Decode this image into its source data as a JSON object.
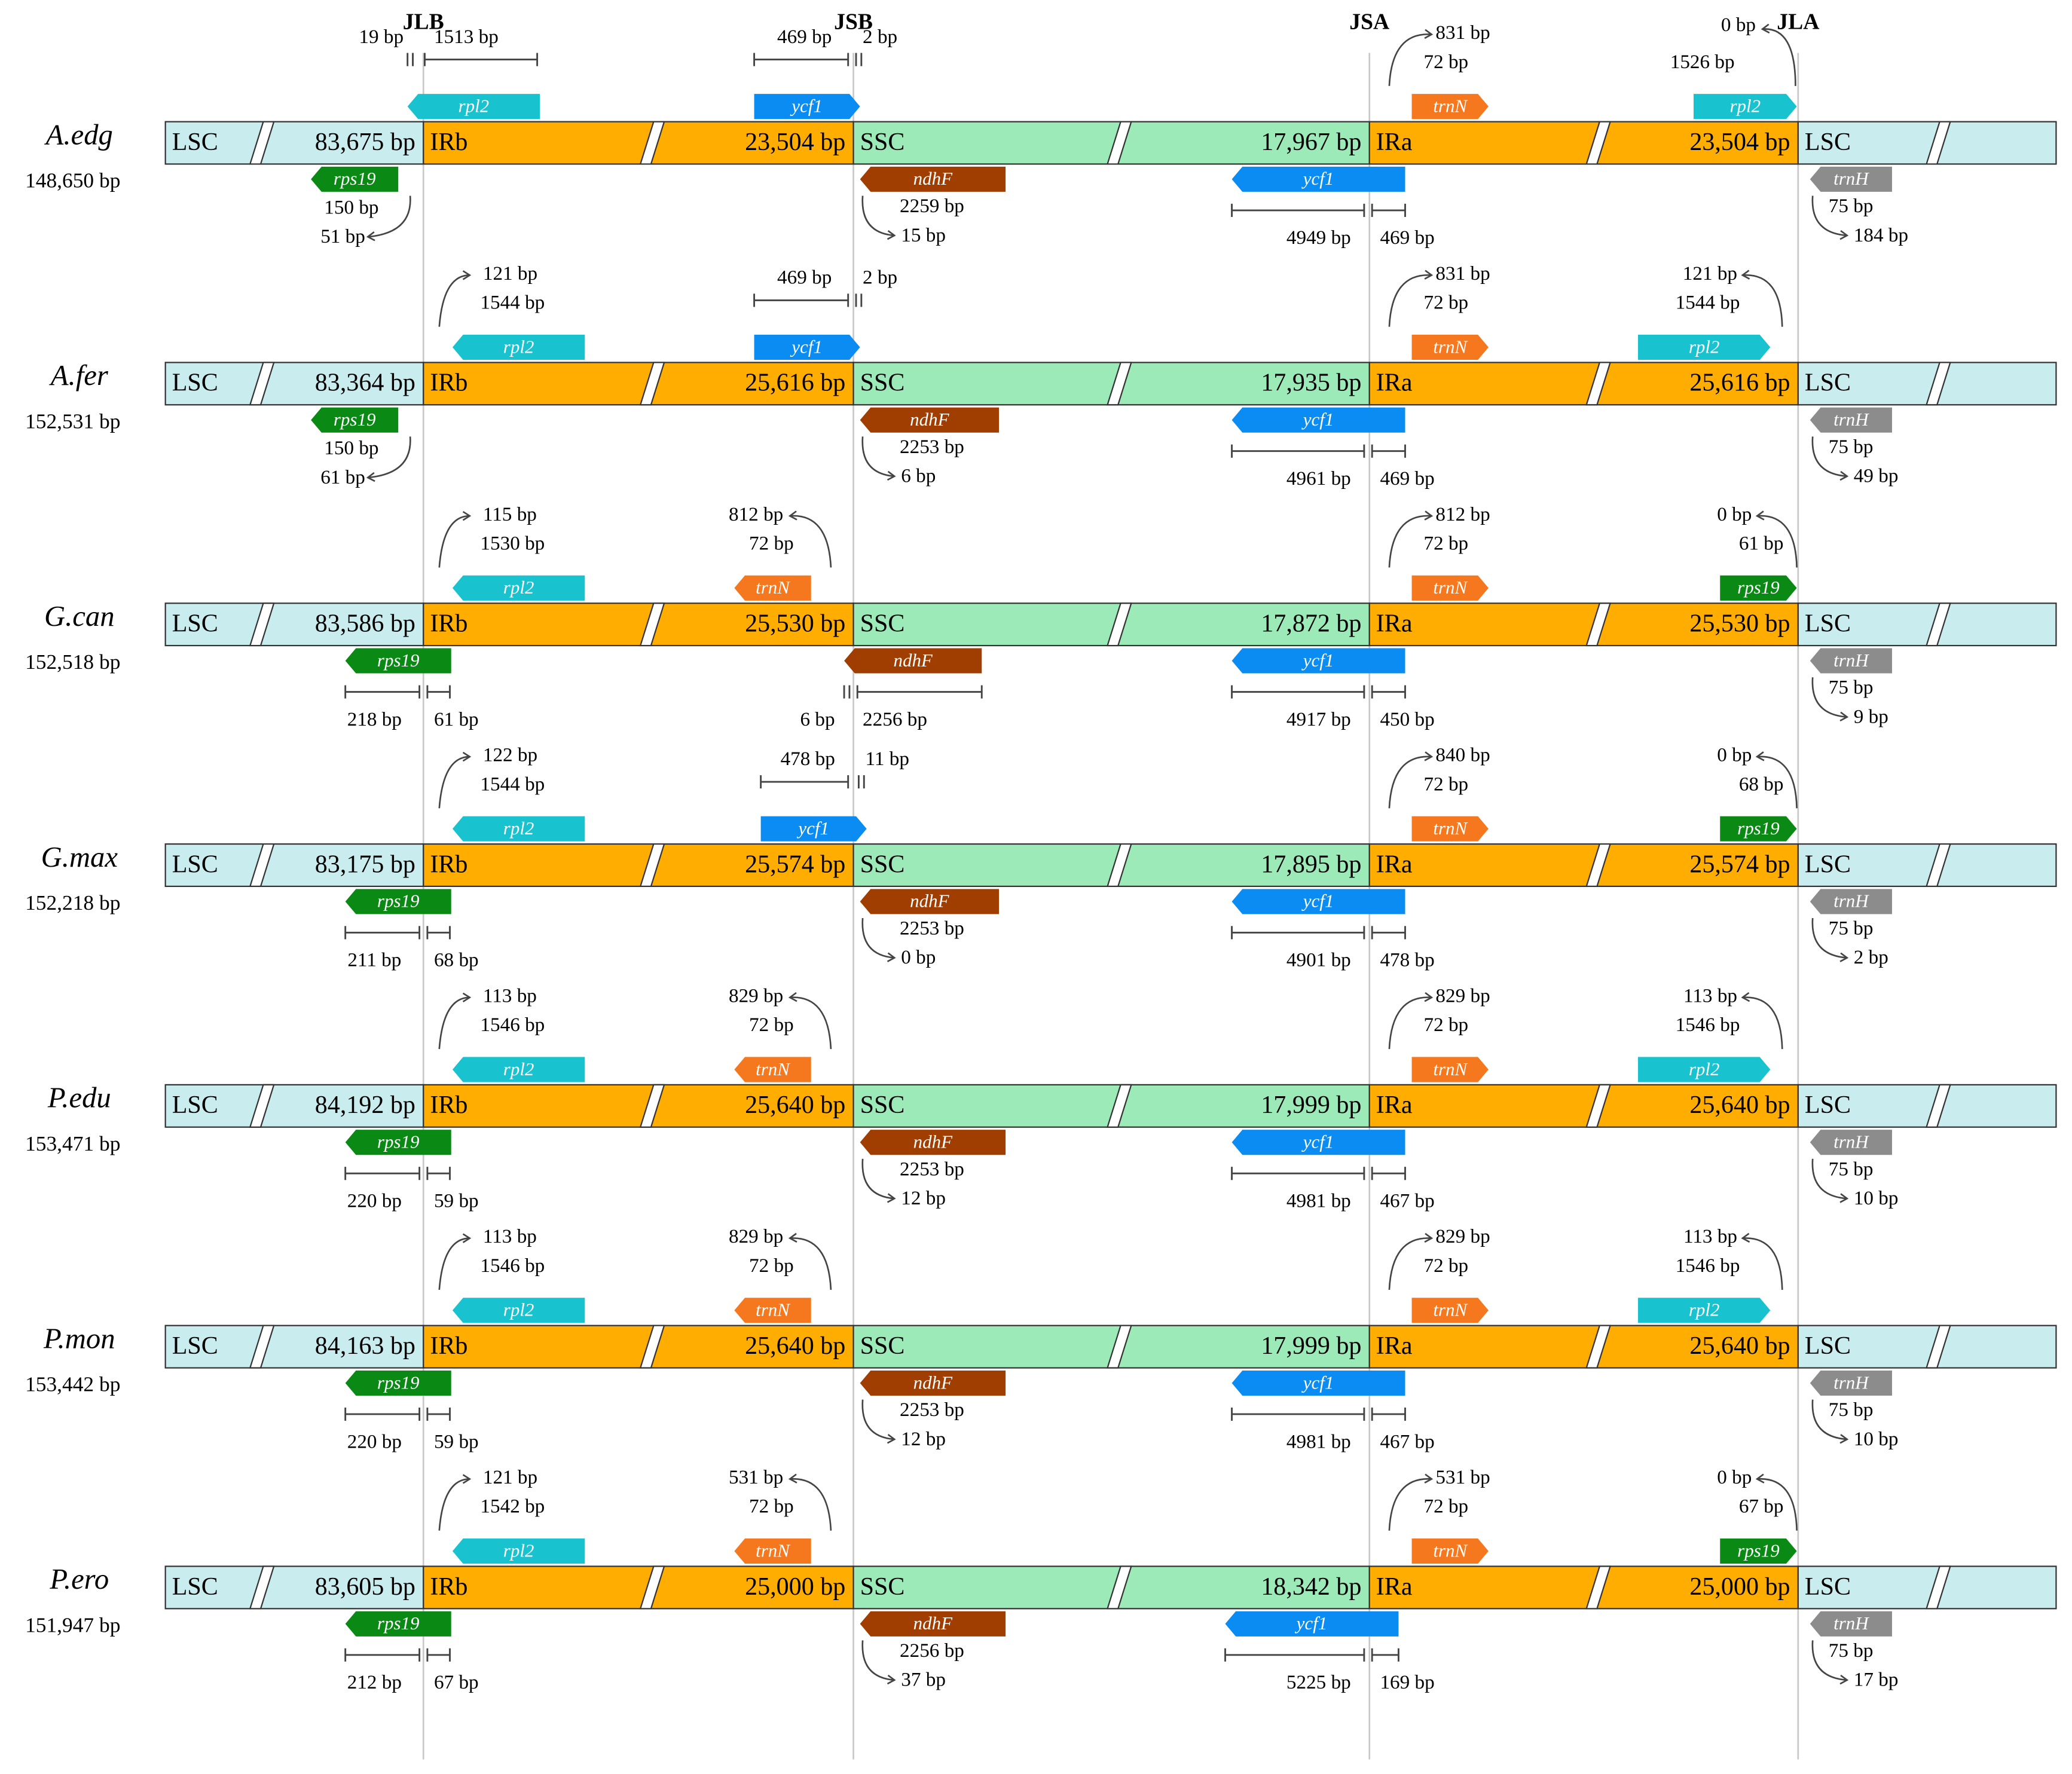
{
  "junctions": [
    "JLB",
    "JSB",
    "JSA",
    "JLA"
  ],
  "region_labels": {
    "lsc": "LSC",
    "irb": "IRb",
    "ssc": "SSC",
    "ira": "IRa"
  },
  "colors": {
    "lsc": "#c9ecef",
    "ir": "#ffad00",
    "ssc": "#9ceab7",
    "rpl2": "#19c2cf",
    "ycf1": "#0a8cf2",
    "trnN": "#f5781f",
    "rps19": "#0a8a14",
    "ndhF": "#a03d00",
    "trnH": "#8c8c8c",
    "line": "#444444",
    "divider": "#c8c8c8"
  },
  "species": [
    {
      "name": "A.edg",
      "total": "148,650 bp",
      "lsc": "83,675 bp",
      "ir": "23,504 bp",
      "ssc": "17,967 bp",
      "jlb_top": {
        "type": "rpl2",
        "gene": "rpl2",
        "left": "19 bp",
        "right": "1513 bp"
      },
      "jlb_bot": {
        "gene": "rps19",
        "a": "150 bp",
        "b": "51 bp"
      },
      "jsb_top": {
        "type": "ycf1",
        "gene": "ycf1",
        "a": "469 bp",
        "b": "2 bp"
      },
      "jsb_bot": {
        "gene": "ndhF",
        "a": "2259 bp",
        "b": "15 bp"
      },
      "jsa_top": {
        "gene": "trnN",
        "a": "831 bp",
        "b": "72 bp"
      },
      "jsa_bot": {
        "gene": "ycf1",
        "a": "4949 bp",
        "b": "469 bp"
      },
      "jla_top": {
        "type": "rpl2in",
        "gene": "rpl2",
        "a": "0 bp",
        "b": "1526 bp"
      },
      "jla_bot": {
        "gene": "trnH",
        "a": "75 bp",
        "b": "184 bp"
      }
    },
    {
      "name": "A.fer",
      "total": "152,531 bp",
      "lsc": "83,364 bp",
      "ir": "25,616 bp",
      "ssc": "17,935 bp",
      "jlb_top": {
        "type": "rpl2",
        "gene": "rpl2",
        "a": "121 bp",
        "b": "1544 bp"
      },
      "jlb_bot": {
        "gene": "rps19",
        "a": "150 bp",
        "b": "61 bp"
      },
      "jsb_top": {
        "type": "ycf1",
        "gene": "ycf1",
        "a": "469 bp",
        "b": "2 bp"
      },
      "jsb_bot": {
        "gene": "ndhF",
        "a": "2253 bp",
        "b": "6 bp"
      },
      "jsa_top": {
        "gene": "trnN",
        "a": "831 bp",
        "b": "72 bp"
      },
      "jsa_bot": {
        "gene": "ycf1",
        "a": "4961 bp",
        "b": "469 bp"
      },
      "jla_top": {
        "type": "rpl2",
        "gene": "rpl2",
        "a": "121 bp",
        "b": "1544 bp"
      },
      "jla_bot": {
        "gene": "trnH",
        "a": "75 bp",
        "b": "49 bp"
      }
    },
    {
      "name": "G.can",
      "total": "152,518 bp",
      "lsc": "83,586 bp",
      "ir": "25,530 bp",
      "ssc": "17,872 bp",
      "jlb_top": {
        "type": "rpl2",
        "gene": "rpl2",
        "a": "115 bp",
        "b": "1530 bp"
      },
      "jlb_bot": {
        "gene": "rps19",
        "a": "218 bp",
        "b": "61 bp"
      },
      "jsb_top": {
        "type": "trnN",
        "gene": "trnN",
        "a": "812 bp",
        "b": "72 bp"
      },
      "jsb_bot": {
        "type": "bracket",
        "gene": "ndhF",
        "a": "6 bp",
        "b": "2256 bp"
      },
      "jsa_top": {
        "gene": "trnN",
        "a": "812 bp",
        "b": "72 bp"
      },
      "jsa_bot": {
        "gene": "ycf1",
        "a": "4917 bp",
        "b": "450 bp"
      },
      "jla_top": {
        "type": "rps19",
        "gene": "rps19",
        "a": "0 bp",
        "b": "61 bp"
      },
      "jla_bot": {
        "gene": "trnH",
        "a": "75 bp",
        "b": "9 bp"
      }
    },
    {
      "name": "G.max",
      "total": "152,218 bp",
      "lsc": "83,175 bp",
      "ir": "25,574 bp",
      "ssc": "17,895 bp",
      "jlb_top": {
        "type": "rpl2",
        "gene": "rpl2",
        "a": "122 bp",
        "b": "1544 bp"
      },
      "jlb_bot": {
        "gene": "rps19",
        "a": "211 bp",
        "b": "68 bp"
      },
      "jsb_top": {
        "type": "ycf1",
        "gene": "ycf1",
        "a": "478 bp",
        "b": "11 bp"
      },
      "jsb_bot": {
        "gene": "ndhF",
        "a": "2253 bp",
        "b": "0 bp"
      },
      "jsa_top": {
        "gene": "trnN",
        "a": "840 bp",
        "b": "72 bp"
      },
      "jsa_bot": {
        "gene": "ycf1",
        "a": "4901 bp",
        "b": "478 bp"
      },
      "jla_top": {
        "type": "rps19",
        "gene": "rps19",
        "a": "0 bp",
        "b": "68 bp"
      },
      "jla_bot": {
        "gene": "trnH",
        "a": "75 bp",
        "b": "2 bp"
      }
    },
    {
      "name": "P.edu",
      "total": "153,471 bp",
      "lsc": "84,192 bp",
      "ir": "25,640 bp",
      "ssc": "17,999 bp",
      "jlb_top": {
        "type": "rpl2",
        "gene": "rpl2",
        "a": "113 bp",
        "b": "1546 bp"
      },
      "jlb_bot": {
        "gene": "rps19",
        "a": "220 bp",
        "b": "59 bp"
      },
      "jsb_top": {
        "type": "trnN",
        "gene": "trnN",
        "a": "829 bp",
        "b": "72 bp"
      },
      "jsb_bot": {
        "gene": "ndhF",
        "a": "2253 bp",
        "b": "12 bp"
      },
      "jsa_top": {
        "gene": "trnN",
        "a": "829 bp",
        "b": "72 bp"
      },
      "jsa_bot": {
        "gene": "ycf1",
        "a": "4981 bp",
        "b": "467 bp"
      },
      "jla_top": {
        "type": "rpl2",
        "gene": "rpl2",
        "a": "113 bp",
        "b": "1546 bp"
      },
      "jla_bot": {
        "gene": "trnH",
        "a": "75 bp",
        "b": "10 bp"
      }
    },
    {
      "name": "P.mon",
      "total": "153,442 bp",
      "lsc": "84,163 bp",
      "ir": "25,640 bp",
      "ssc": "17,999 bp",
      "jlb_top": {
        "type": "rpl2",
        "gene": "rpl2",
        "a": "113 bp",
        "b": "1546 bp"
      },
      "jlb_bot": {
        "gene": "rps19",
        "a": "220 bp",
        "b": "59 bp"
      },
      "jsb_top": {
        "type": "trnN",
        "gene": "trnN",
        "a": "829 bp",
        "b": "72 bp"
      },
      "jsb_bot": {
        "gene": "ndhF",
        "a": "2253 bp",
        "b": "12 bp"
      },
      "jsa_top": {
        "gene": "trnN",
        "a": "829 bp",
        "b": "72 bp"
      },
      "jsa_bot": {
        "gene": "ycf1",
        "a": "4981 bp",
        "b": "467 bp"
      },
      "jla_top": {
        "type": "rpl2",
        "gene": "rpl2",
        "a": "113 bp",
        "b": "1546 bp"
      },
      "jla_bot": {
        "gene": "trnH",
        "a": "75 bp",
        "b": "10 bp"
      }
    },
    {
      "name": "P.ero",
      "total": "151,947 bp",
      "lsc": "83,605 bp",
      "ir": "25,000 bp",
      "ssc": "18,342 bp",
      "jlb_top": {
        "type": "rpl2",
        "gene": "rpl2",
        "a": "121 bp",
        "b": "1542 bp"
      },
      "jlb_bot": {
        "gene": "rps19",
        "a": "212 bp",
        "b": "67 bp"
      },
      "jsb_top": {
        "type": "trnN",
        "gene": "trnN",
        "a": "531 bp",
        "b": "72 bp"
      },
      "jsb_bot": {
        "gene": "ndhF",
        "a": "2256 bp",
        "b": "37 bp"
      },
      "jsa_top": {
        "gene": "trnN",
        "a": "531 bp",
        "b": "72 bp"
      },
      "jsa_bot": {
        "gene": "ycf1",
        "a": "5225 bp",
        "b": "169 bp"
      },
      "jla_top": {
        "type": "rps19",
        "gene": "rps19",
        "a": "0 bp",
        "b": "67 bp"
      },
      "jla_bot": {
        "gene": "trnH",
        "a": "75 bp",
        "b": "17 bp"
      }
    }
  ]
}
